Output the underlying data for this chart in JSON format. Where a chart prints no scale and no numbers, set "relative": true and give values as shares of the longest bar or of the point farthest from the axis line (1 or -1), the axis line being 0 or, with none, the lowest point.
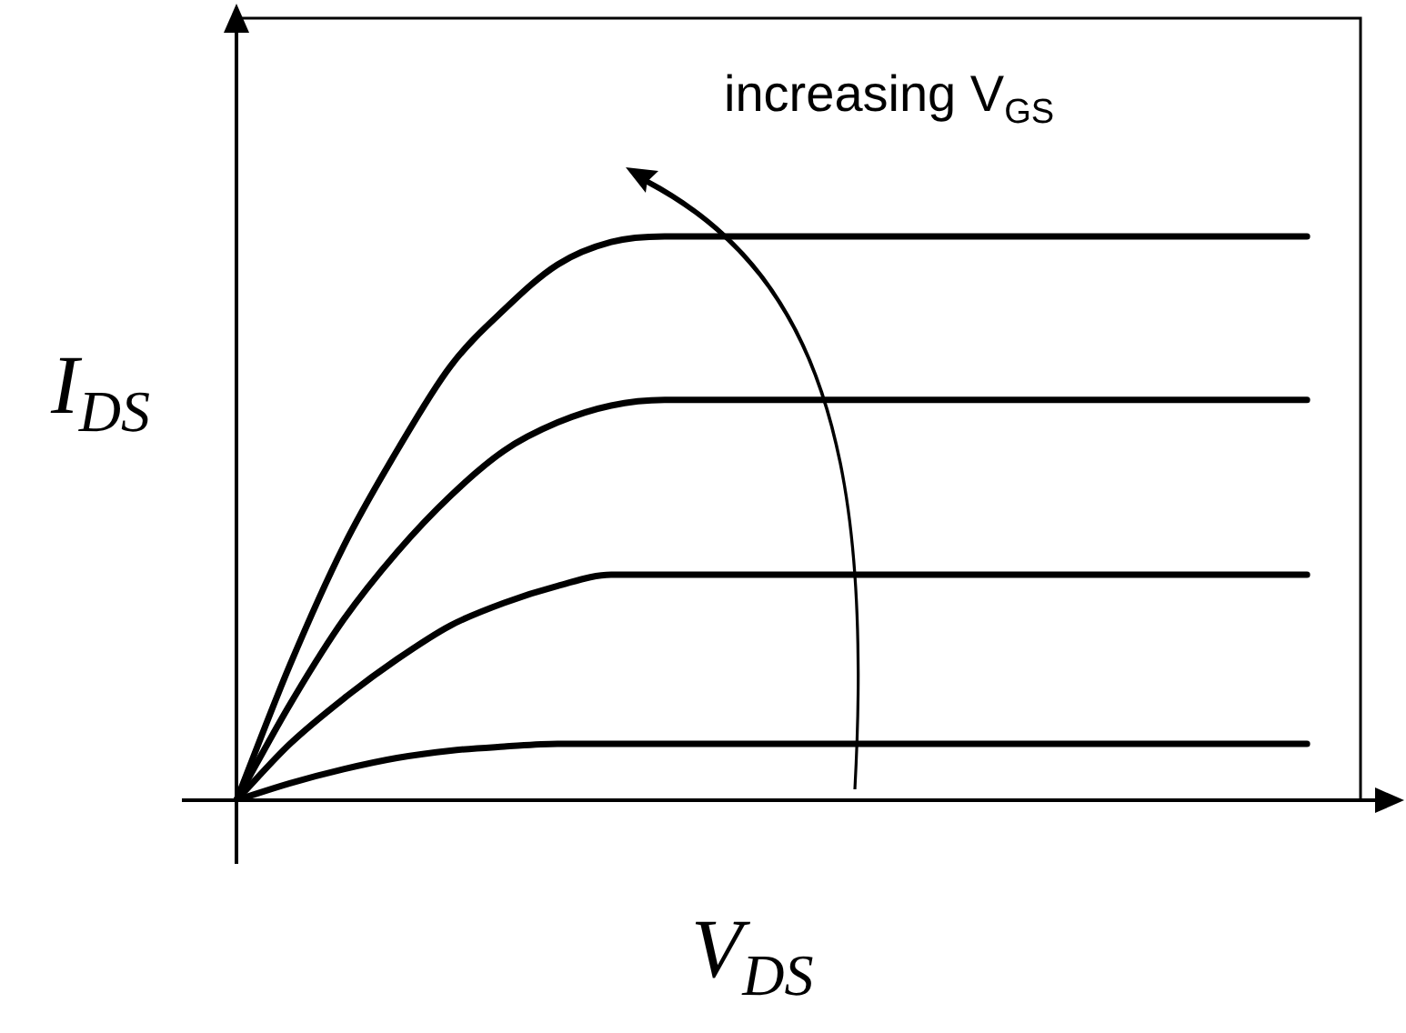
{
  "chart_data": {
    "type": "line",
    "relative": true,
    "xlabel": "V$_{DS}$",
    "ylabel": "I$_{DS}$",
    "annotations": [
      "increasing V$_{GS}$"
    ],
    "legend": false,
    "marker": "none",
    "categories": [
      null,
      null,
      null,
      null,
      null,
      null,
      null,
      null,
      null,
      null,
      null,
      null,
      null,
      null,
      null,
      null,
      null,
      null,
      null,
      null,
      null,
      null
    ],
    "series": [
      {
        "color": "#000000",
        "values": [
          0,
          0.24,
          0.45,
          0.62,
          0.77,
          0.87,
          0.95,
          0.99,
          1,
          1,
          1,
          1,
          1,
          1,
          1,
          1,
          1,
          1,
          1,
          1,
          1,
          null
        ]
      },
      {
        "color": "#000000",
        "values": [
          0,
          0.17,
          0.32,
          0.44,
          0.54,
          0.62,
          0.67,
          0.7,
          0.71,
          0.71,
          0.71,
          null,
          0.71,
          0.71,
          0.71,
          0.71,
          0.71,
          0.71,
          0.71,
          0.71,
          0.71,
          null
        ]
      },
      {
        "color": "#000000",
        "values": [
          0,
          0.1,
          0.18,
          0.25,
          0.31,
          0.35,
          0.38,
          0.4,
          0.4,
          0.4,
          0.4,
          0.4,
          0.4,
          0.4,
          0.4,
          0.4,
          0.4,
          0.4,
          0.4,
          0.4,
          0.4,
          null
        ]
      },
      {
        "color": "#000000",
        "values": [
          0,
          0.03,
          0.055,
          0.075,
          0.088,
          0.095,
          0.1,
          0.1,
          0.1,
          0.1,
          0.1,
          0.1,
          0.1,
          0.1,
          0.1,
          0.1,
          0.1,
          0.1,
          0.1,
          0.1,
          0.1,
          null
        ]
      }
    ]
  }
}
